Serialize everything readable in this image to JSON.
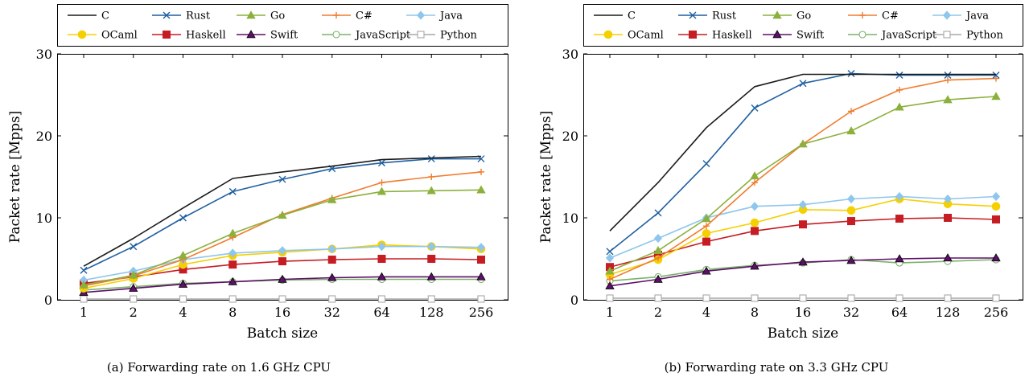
{
  "chart_data": [
    {
      "type": "line",
      "caption": "(a)  Forwarding rate on 1.6 GHz CPU",
      "xlabel": "Batch size",
      "ylabel": "Packet rate [Mpps]",
      "ylim": [
        0,
        30
      ],
      "yticks": [
        0,
        10,
        20,
        30
      ],
      "categories": [
        "1",
        "2",
        "4",
        "8",
        "16",
        "32",
        "64",
        "128",
        "256"
      ],
      "grid": false,
      "legend_position": "top",
      "series": [
        {
          "name": "C",
          "values": [
            4.1,
            7.5,
            11.2,
            14.8,
            15.6,
            16.3,
            17.1,
            17.3,
            17.5
          ]
        },
        {
          "name": "Rust",
          "values": [
            3.6,
            6.5,
            10.0,
            13.2,
            14.7,
            16.0,
            16.7,
            17.2,
            17.2
          ]
        },
        {
          "name": "Go",
          "values": [
            1.8,
            3.0,
            5.4,
            8.1,
            10.3,
            12.2,
            13.2,
            13.3,
            13.4
          ]
        },
        {
          "name": "C#",
          "values": [
            1.7,
            2.9,
            4.9,
            7.6,
            10.4,
            12.4,
            14.3,
            15.0,
            15.6
          ]
        },
        {
          "name": "Java",
          "values": [
            2.4,
            3.5,
            4.9,
            5.7,
            6.0,
            6.2,
            6.5,
            6.5,
            6.4
          ]
        },
        {
          "name": "OCaml",
          "values": [
            1.4,
            2.6,
            4.3,
            5.4,
            5.8,
            6.2,
            6.7,
            6.5,
            6.2
          ]
        },
        {
          "name": "Haskell",
          "values": [
            2.0,
            2.8,
            3.7,
            4.3,
            4.7,
            4.9,
            5.0,
            5.0,
            4.9
          ]
        },
        {
          "name": "Swift",
          "values": [
            0.9,
            1.4,
            1.9,
            2.2,
            2.5,
            2.7,
            2.8,
            2.8,
            2.8
          ]
        },
        {
          "name": "JavaScript",
          "values": [
            1.2,
            1.6,
            2.0,
            2.2,
            2.4,
            2.5,
            2.5,
            2.5,
            2.5
          ]
        },
        {
          "name": "Python",
          "values": [
            0.1,
            0.1,
            0.1,
            0.1,
            0.1,
            0.1,
            0.1,
            0.1,
            0.1
          ]
        }
      ]
    },
    {
      "type": "line",
      "caption": "(b)  Forwarding rate on 3.3 GHz CPU",
      "xlabel": "Batch size",
      "ylabel": "Packet rate [Mpps]",
      "ylim": [
        0,
        30
      ],
      "yticks": [
        0,
        10,
        20,
        30
      ],
      "categories": [
        "1",
        "2",
        "4",
        "8",
        "16",
        "32",
        "64",
        "128",
        "256"
      ],
      "grid": false,
      "legend_position": "top",
      "series": [
        {
          "name": "C",
          "values": [
            8.4,
            14.3,
            21.0,
            26.0,
            27.5,
            27.5,
            27.5,
            27.5,
            27.5
          ]
        },
        {
          "name": "Rust",
          "values": [
            5.9,
            10.6,
            16.6,
            23.4,
            26.4,
            27.6,
            27.4,
            27.4,
            27.4
          ]
        },
        {
          "name": "Go",
          "values": [
            3.5,
            6.0,
            9.9,
            15.1,
            19.0,
            20.6,
            23.5,
            24.4,
            24.8
          ]
        },
        {
          "name": "C#",
          "values": [
            2.5,
            5.1,
            9.0,
            14.3,
            19.0,
            23.0,
            25.6,
            26.8,
            27.0
          ]
        },
        {
          "name": "Java",
          "values": [
            5.1,
            7.5,
            10.0,
            11.4,
            11.6,
            12.3,
            12.6,
            12.3,
            12.6
          ]
        },
        {
          "name": "OCaml",
          "values": [
            3.1,
            4.9,
            8.1,
            9.4,
            11.0,
            10.9,
            12.3,
            11.7,
            11.4
          ]
        },
        {
          "name": "Haskell",
          "values": [
            4.0,
            5.5,
            7.1,
            8.4,
            9.2,
            9.6,
            9.9,
            10.0,
            9.8
          ]
        },
        {
          "name": "Swift",
          "values": [
            1.7,
            2.5,
            3.5,
            4.1,
            4.6,
            4.8,
            5.0,
            5.1,
            5.1
          ]
        },
        {
          "name": "JavaScript",
          "values": [
            2.3,
            2.8,
            3.7,
            4.2,
            4.5,
            4.9,
            4.5,
            4.7,
            4.9
          ]
        },
        {
          "name": "Python",
          "values": [
            0.2,
            0.2,
            0.2,
            0.2,
            0.2,
            0.2,
            0.2,
            0.2,
            0.2
          ]
        }
      ]
    }
  ],
  "series_styles": {
    "C": {
      "color": "#1a1a1a",
      "marker": "none"
    },
    "Rust": {
      "color": "#1f5fa0",
      "marker": "x"
    },
    "Go": {
      "color": "#8cb03c",
      "marker": "triangle"
    },
    "C#": {
      "color": "#f07c2e",
      "marker": "plus"
    },
    "Java": {
      "color": "#8ec6ec",
      "marker": "diamond"
    },
    "OCaml": {
      "color": "#f5d000",
      "marker": "circle-filled"
    },
    "Haskell": {
      "color": "#c61c23",
      "marker": "square-filled"
    },
    "Swift": {
      "color": "#5e0f6a",
      "marker": "triangle-outline"
    },
    "JavaScript": {
      "color": "#7bb26a",
      "marker": "circle-open"
    },
    "Python": {
      "color": "#a8a8a8",
      "marker": "square-open"
    }
  }
}
